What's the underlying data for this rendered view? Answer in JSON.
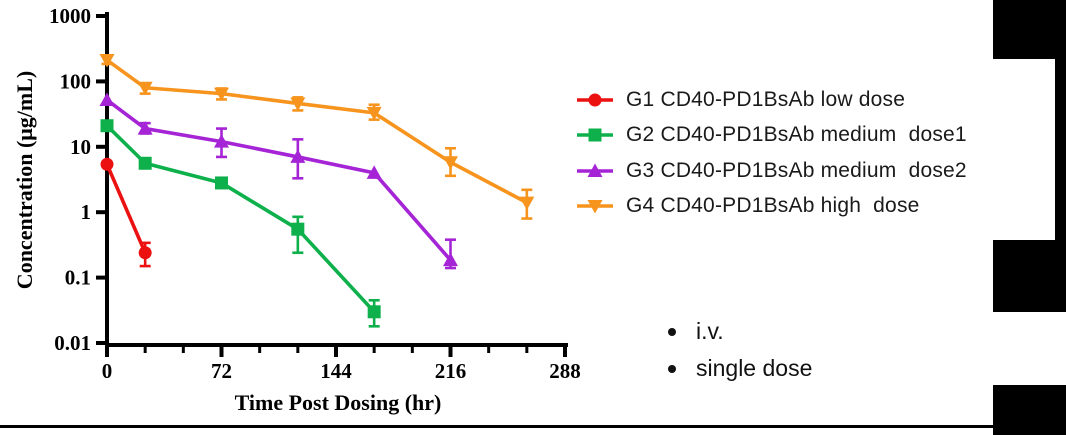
{
  "chart_data": {
    "type": "line",
    "title": "",
    "xlabel": "Time Post Dosing (hr)",
    "ylabel": "Concentration (μg/mL)",
    "x_scale": "linear",
    "y_scale": "log",
    "xlim": [
      0,
      288
    ],
    "ylim": [
      0.01,
      1000
    ],
    "x_ticks": [
      0,
      72,
      144,
      216,
      288
    ],
    "x_minor_step": 24,
    "y_ticks": [
      1000,
      100,
      10,
      1,
      0.1,
      0.01
    ],
    "y_tick_labels": [
      "1000",
      "100",
      "10",
      "1",
      "0.1",
      "0.01"
    ],
    "grid": false,
    "legend_position": "right",
    "series": [
      {
        "name": "g1",
        "label": "G1 CD40-PD1BsAb low dose",
        "color": "#EC1111",
        "marker": "circle",
        "points": [
          {
            "t": 0,
            "v": 5.4
          },
          {
            "t": 24,
            "v": 0.24,
            "lo": 0.15,
            "hi": 0.34
          }
        ]
      },
      {
        "name": "g2",
        "label": "G2 CD40-PD1BsAb medium  dose1",
        "color": "#0DB04B",
        "marker": "square",
        "points": [
          {
            "t": 0,
            "v": 21
          },
          {
            "t": 24,
            "v": 5.6
          },
          {
            "t": 72,
            "v": 2.8
          },
          {
            "t": 120,
            "v": 0.55,
            "lo": 0.24,
            "hi": 0.85
          },
          {
            "t": 168,
            "v": 0.03,
            "lo": 0.018,
            "hi": 0.045
          }
        ]
      },
      {
        "name": "g3",
        "label": "G3 CD40-PD1BsAb medium  dose2",
        "color": "#A524D6",
        "marker": "triangle-up",
        "points": [
          {
            "t": 0,
            "v": 52
          },
          {
            "t": 24,
            "v": 19,
            "lo": 16,
            "hi": 23
          },
          {
            "t": 72,
            "v": 12,
            "lo": 7,
            "hi": 19
          },
          {
            "t": 120,
            "v": 7,
            "lo": 3.3,
            "hi": 13
          },
          {
            "t": 168,
            "v": 4
          },
          {
            "t": 216,
            "v": 0.185,
            "lo": 0.14,
            "hi": 0.38
          }
        ]
      },
      {
        "name": "g4",
        "label": "G4 CD40-PD1BsAb high  dose",
        "color": "#F7941E",
        "marker": "triangle-down",
        "points": [
          {
            "t": 0,
            "v": 212,
            "lo": 185,
            "hi": 245
          },
          {
            "t": 24,
            "v": 80,
            "lo": 65,
            "hi": 93
          },
          {
            "t": 72,
            "v": 65,
            "lo": 53,
            "hi": 78
          },
          {
            "t": 120,
            "v": 46,
            "lo": 36,
            "hi": 57
          },
          {
            "t": 168,
            "v": 33,
            "lo": 26,
            "hi": 44
          },
          {
            "t": 216,
            "v": 5.8,
            "lo": 3.6,
            "hi": 9.5
          },
          {
            "t": 264,
            "v": 1.4,
            "lo": 0.8,
            "hi": 2.2
          }
        ]
      }
    ]
  },
  "notes": [
    "i.v.",
    "single dose"
  ],
  "colors": {
    "axis": "#000000",
    "text": "#111111",
    "background": "#ffffff",
    "redaction": "#000000"
  }
}
